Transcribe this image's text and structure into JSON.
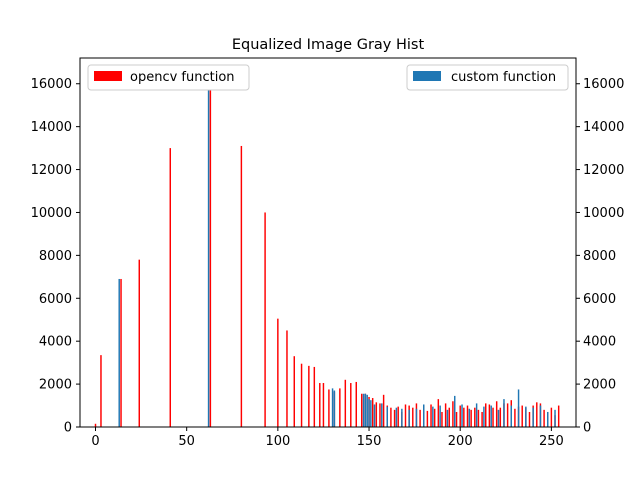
{
  "colors": {
    "opencv": "#ff0000",
    "custom": "#1f77b4",
    "axis": "#000000",
    "background": "#ffffff"
  },
  "chart_data": {
    "type": "bar",
    "title": "Equalized Image Gray Hist",
    "xlabel": "",
    "ylabel": "",
    "xlim": [
      -8.5,
      263.5
    ],
    "ylim": [
      0,
      17200
    ],
    "x_ticks": [
      0,
      50,
      100,
      150,
      200,
      250
    ],
    "y_ticks": [
      0,
      2000,
      4000,
      6000,
      8000,
      10000,
      12000,
      14000,
      16000
    ],
    "grid": false,
    "legend": [
      {
        "label": "opencv function",
        "placement": "upper-left"
      },
      {
        "label": "custom function",
        "placement": "upper-right"
      }
    ],
    "series": [
      {
        "name": "opencv function",
        "x": [
          0,
          3,
          14,
          24,
          41,
          63,
          80,
          93,
          100,
          105,
          109,
          113,
          117,
          120,
          123,
          125,
          128,
          131,
          134,
          137,
          140,
          143,
          146,
          148,
          150,
          152,
          154,
          156,
          158,
          160,
          162,
          164,
          166,
          168,
          170,
          172,
          174,
          176,
          178,
          180,
          182,
          184,
          186,
          188,
          190,
          192,
          194,
          196,
          198,
          200,
          202,
          204,
          206,
          208,
          210,
          212,
          214,
          216,
          218,
          220,
          222,
          224,
          226,
          228,
          230,
          232,
          234,
          236,
          238,
          240,
          242,
          244,
          246,
          248,
          250,
          252,
          254
        ],
        "values": [
          150,
          3350,
          6900,
          7800,
          13000,
          15700,
          13100,
          10000,
          5050,
          4500,
          3300,
          2950,
          2850,
          2800,
          2050,
          2050,
          1750,
          1650,
          1800,
          2200,
          2050,
          2100,
          1550,
          1550,
          1400,
          1350,
          1150,
          1100,
          1500,
          1000,
          900,
          800,
          950,
          700,
          1050,
          1000,
          900,
          1100,
          800,
          1000,
          750,
          1050,
          850,
          1300,
          700,
          1100,
          900,
          1200,
          700,
          1000,
          900,
          1000,
          800,
          900,
          800,
          700,
          1100,
          1050,
          900,
          1200,
          900,
          1100,
          1100,
          1250,
          850,
          950,
          1000,
          900,
          700,
          1000,
          1150,
          1100,
          800,
          700,
          900,
          550,
          1000
        ]
      },
      {
        "name": "custom function",
        "x": [
          13,
          62,
          130,
          131,
          147,
          148,
          149,
          150,
          151,
          153,
          157,
          160,
          165,
          168,
          172,
          176,
          180,
          185,
          189,
          193,
          197,
          201,
          205,
          209,
          213,
          217,
          221,
          224,
          228,
          232,
          236,
          240,
          244,
          248,
          252
        ],
        "values": [
          6900,
          15700,
          1800,
          1700,
          1550,
          1550,
          1500,
          1300,
          1250,
          1050,
          1100,
          950,
          900,
          850,
          800,
          850,
          1050,
          950,
          1000,
          800,
          1450,
          1050,
          850,
          1100,
          950,
          1000,
          800,
          1300,
          1000,
          1750,
          950,
          900,
          1000,
          700,
          800
        ]
      }
    ]
  }
}
